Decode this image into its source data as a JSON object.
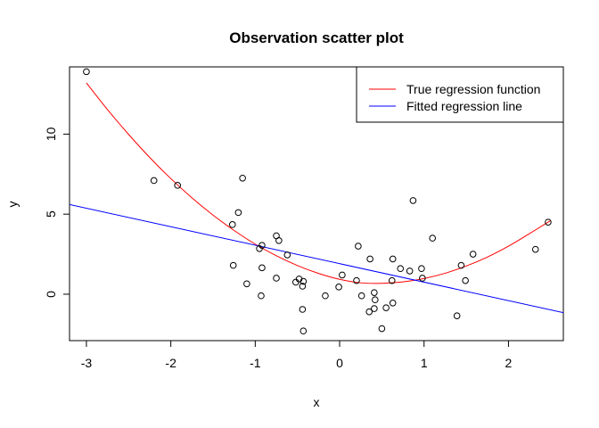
{
  "chart_data": {
    "type": "scatter",
    "title": "Observation scatter plot",
    "xlabel": "x",
    "ylabel": "y",
    "xlim": [
      -3.2,
      2.65
    ],
    "ylim": [
      -2.9,
      14.2
    ],
    "x_ticks": [
      "-3",
      "-2",
      "-1",
      "0",
      "1",
      "2"
    ],
    "x_tick_values": [
      -3,
      -2,
      -1,
      0,
      1,
      2
    ],
    "y_ticks": [
      "0",
      "5",
      "10"
    ],
    "y_tick_values": [
      0,
      5,
      10
    ],
    "grid": false,
    "legend_position": "top-right",
    "points": [
      {
        "x": -3.0,
        "y": 13.9
      },
      {
        "x": -2.2,
        "y": 7.1
      },
      {
        "x": -1.92,
        "y": 6.8
      },
      {
        "x": -1.27,
        "y": 4.35
      },
      {
        "x": -1.2,
        "y": 5.1
      },
      {
        "x": -1.15,
        "y": 7.25
      },
      {
        "x": -1.26,
        "y": 1.8
      },
      {
        "x": -1.1,
        "y": 0.65
      },
      {
        "x": -0.95,
        "y": 2.85
      },
      {
        "x": -0.92,
        "y": 3.05
      },
      {
        "x": -0.92,
        "y": 1.65
      },
      {
        "x": -0.93,
        "y": -0.1
      },
      {
        "x": -0.75,
        "y": 3.65
      },
      {
        "x": -0.72,
        "y": 3.35
      },
      {
        "x": -0.75,
        "y": 1.0
      },
      {
        "x": -0.62,
        "y": 2.45
      },
      {
        "x": -0.52,
        "y": 0.75
      },
      {
        "x": -0.48,
        "y": 0.95
      },
      {
        "x": -0.44,
        "y": 0.5
      },
      {
        "x": -0.43,
        "y": 0.8
      },
      {
        "x": -0.44,
        "y": -0.95
      },
      {
        "x": -0.43,
        "y": -2.3
      },
      {
        "x": -0.17,
        "y": -0.1
      },
      {
        "x": 0.03,
        "y": 1.2
      },
      {
        "x": -0.01,
        "y": 0.45
      },
      {
        "x": 0.2,
        "y": 0.85
      },
      {
        "x": 0.22,
        "y": 3.0
      },
      {
        "x": 0.26,
        "y": -0.1
      },
      {
        "x": 0.36,
        "y": 2.2
      },
      {
        "x": 0.35,
        "y": -1.1
      },
      {
        "x": 0.41,
        "y": 0.1
      },
      {
        "x": 0.42,
        "y": -0.35
      },
      {
        "x": 0.41,
        "y": -0.9
      },
      {
        "x": 0.5,
        "y": -2.15
      },
      {
        "x": 0.55,
        "y": -0.85
      },
      {
        "x": 0.63,
        "y": 2.2
      },
      {
        "x": 0.62,
        "y": 0.85
      },
      {
        "x": 0.63,
        "y": -0.55
      },
      {
        "x": 0.72,
        "y": 1.6
      },
      {
        "x": 0.83,
        "y": 1.45
      },
      {
        "x": 0.87,
        "y": 5.85
      },
      {
        "x": 0.97,
        "y": 1.6
      },
      {
        "x": 0.98,
        "y": 1.0
      },
      {
        "x": 1.1,
        "y": 3.5
      },
      {
        "x": 1.39,
        "y": -1.35
      },
      {
        "x": 1.44,
        "y": 1.8
      },
      {
        "x": 1.49,
        "y": 0.85
      },
      {
        "x": 1.58,
        "y": 2.5
      },
      {
        "x": 2.32,
        "y": 2.8
      },
      {
        "x": 2.47,
        "y": 4.5
      }
    ],
    "series": [
      {
        "name": "True regression function",
        "type": "curve",
        "color": "#ff0000",
        "x": [
          -3.0,
          -2.75,
          -2.5,
          -2.25,
          -2.0,
          -1.75,
          -1.5,
          -1.25,
          -1.0,
          -0.75,
          -0.5,
          -0.25,
          0.0,
          0.25,
          0.5,
          0.75,
          1.0,
          1.25,
          1.5,
          1.75,
          2.0,
          2.25,
          2.5
        ],
        "y": [
          13.2,
          11.53,
          9.98,
          8.54,
          7.22,
          6.02,
          4.94,
          3.98,
          3.13,
          2.4,
          1.79,
          1.3,
          0.93,
          0.71,
          0.68,
          0.77,
          0.98,
          1.31,
          1.76,
          2.32,
          3.0,
          3.79,
          4.6
        ]
      },
      {
        "name": "Fitted regression line",
        "type": "line",
        "color": "#0000ff",
        "x": [
          -3.2,
          2.65
        ],
        "y": [
          5.6,
          -1.15
        ]
      }
    ]
  }
}
